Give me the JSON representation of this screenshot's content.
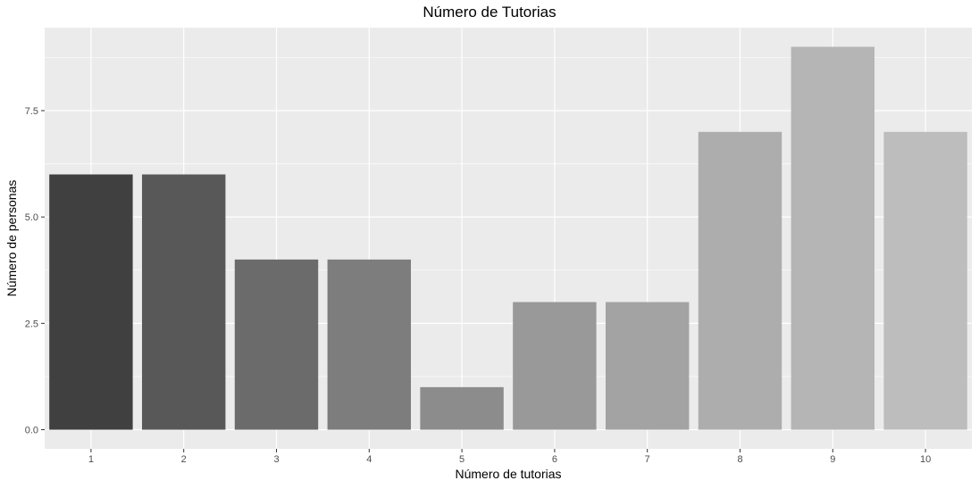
{
  "chart_data": {
    "type": "bar",
    "title": "Número de Tutorias",
    "xlabel": "Número de tutorias",
    "ylabel": "Número de personas",
    "categories": [
      "1",
      "2",
      "3",
      "4",
      "5",
      "6",
      "7",
      "8",
      "9",
      "10"
    ],
    "values": [
      6,
      6,
      4,
      4,
      1,
      3,
      3,
      7,
      9,
      7
    ],
    "bar_colors": [
      "#404040",
      "#585858",
      "#6b6b6b",
      "#7d7d7d",
      "#8c8c8c",
      "#999999",
      "#a3a3a3",
      "#adadad",
      "#b5b5b5",
      "#bdbdbd"
    ],
    "ylim": [
      -0.45,
      9.45
    ],
    "yticks": [
      0,
      2.5,
      5,
      7.5
    ],
    "ytick_labels": [
      "0.0",
      "2.5",
      "5.0",
      "7.5"
    ],
    "grid": true,
    "panel_background": "#ebebeb",
    "grid_color": "#ffffff"
  }
}
